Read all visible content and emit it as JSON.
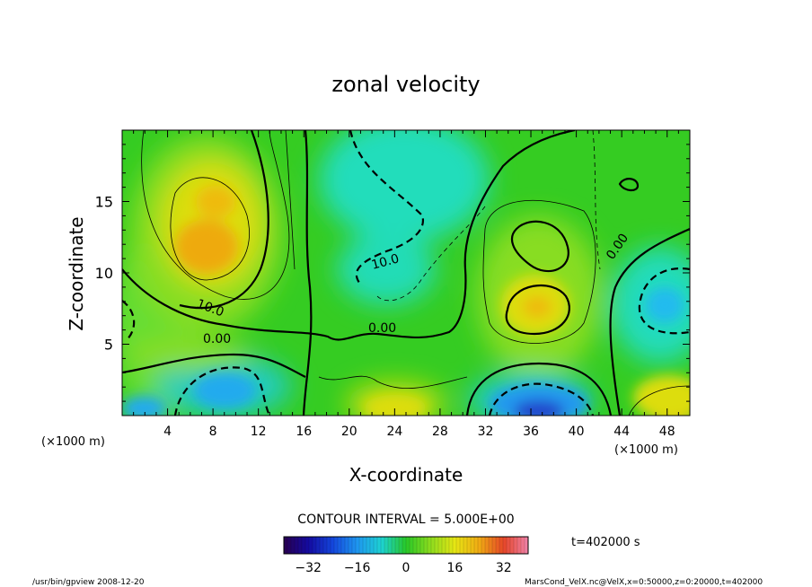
{
  "chart_data": {
    "type": "heatmap",
    "title": "zonal velocity",
    "xlabel": "X-coordinate",
    "ylabel": "Z-coordinate",
    "x_unit_left": "(×1000 m)",
    "x_unit_right": "(×1000 m)",
    "xlim": [
      0,
      50
    ],
    "ylim": [
      0,
      20
    ],
    "x_ticks": [
      "4",
      "8",
      "12",
      "16",
      "20",
      "24",
      "28",
      "32",
      "36",
      "40",
      "44",
      "48"
    ],
    "y_ticks": [
      "5",
      "10",
      "15"
    ],
    "contour_interval_text": "CONTOUR INTERVAL = 5.000E+00",
    "contour_labels": [
      "10.0",
      "0.00",
      "0.00",
      "10.0",
      "0.00"
    ],
    "colorbar": {
      "range": [
        -40,
        40
      ],
      "tick_labels": [
        "−32",
        "−16",
        "0",
        "16",
        "32"
      ],
      "tick_values": [
        -32,
        -16,
        0,
        16,
        32
      ]
    },
    "time_label": "t=402000 s",
    "footer_left": "/usr/bin/gpview  2008-12-20",
    "footer_right": "MarsCond_VelX.nc@VelX,x=0:50000,z=0:20000,t=402000",
    "features": [
      {
        "name": "max",
        "x": 7.5,
        "z": 12.5,
        "value": 22
      },
      {
        "name": "max",
        "x": 36,
        "z": 7.5,
        "value": 18
      },
      {
        "name": "max",
        "x": 48,
        "z": 0.5,
        "value": 20
      },
      {
        "name": "min",
        "x": 37,
        "z": 0.5,
        "value": -35
      },
      {
        "name": "min",
        "x": 9,
        "z": 1.5,
        "value": -18
      },
      {
        "name": "min",
        "x": 48,
        "z": 7.5,
        "value": -15
      },
      {
        "name": "min",
        "x": 24,
        "z": 13,
        "value": -12
      }
    ]
  },
  "colors": {
    "background": "#ffffff",
    "plot_bg": "#33cc22",
    "contour": "#000000"
  }
}
